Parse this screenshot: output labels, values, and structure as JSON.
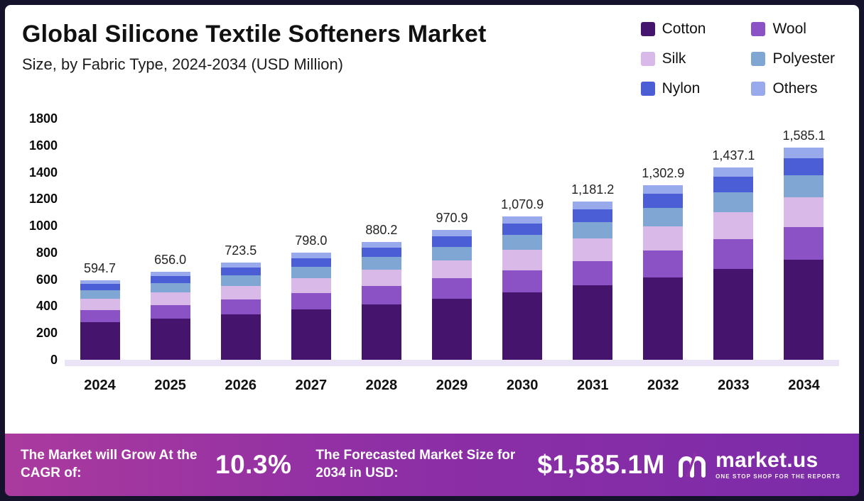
{
  "page": {
    "title": "Global Silicone Textile Softeners Market",
    "subtitle": "Size, by Fabric Type, 2024-2034 (USD Million)"
  },
  "legend": [
    {
      "label": "Cotton",
      "color": "#45156e"
    },
    {
      "label": "Wool",
      "color": "#8a52c4"
    },
    {
      "label": "Silk",
      "color": "#d8b9e8"
    },
    {
      "label": "Polyester",
      "color": "#80a7d3"
    },
    {
      "label": "Nylon",
      "color": "#4c5ed6"
    },
    {
      "label": "Others",
      "color": "#98a9ec"
    }
  ],
  "chart_data": {
    "type": "bar",
    "stacked": true,
    "title": "Global Silicone Textile Softeners Market Size, by Fabric Type, 2024-2034 (USD Million)",
    "unit": "USD Million",
    "grid": false,
    "legend_position": "top-right",
    "categories": [
      "2024",
      "2025",
      "2026",
      "2027",
      "2028",
      "2029",
      "2030",
      "2031",
      "2032",
      "2033",
      "2034"
    ],
    "totals": [
      594.7,
      656.0,
      723.5,
      798.0,
      880.2,
      970.9,
      1070.9,
      1181.2,
      1302.9,
      1437.1,
      1585.1
    ],
    "totals_labels": [
      "594.7",
      "656.0",
      "723.5",
      "798.0",
      "880.2",
      "970.9",
      "1,070.9",
      "1,181.2",
      "1,302.9",
      "1,437.1",
      "1,585.1"
    ],
    "ylim": [
      0,
      1800
    ],
    "y_ticks": [
      0,
      200,
      400,
      600,
      800,
      1000,
      1200,
      1400,
      1600,
      1800
    ],
    "series": [
      {
        "name": "Cotton",
        "color": "#45156e",
        "values": [
          279.5,
          308.3,
          340.0,
          375.1,
          413.7,
          456.3,
          503.3,
          555.2,
          612.4,
          675.4,
          745.0
        ]
      },
      {
        "name": "Wool",
        "color": "#8a52c4",
        "values": [
          92.2,
          101.7,
          112.1,
          123.7,
          136.4,
          150.5,
          166.0,
          183.1,
          201.9,
          222.8,
          245.7
        ]
      },
      {
        "name": "Silk",
        "color": "#d8b9e8",
        "values": [
          83.3,
          91.8,
          101.3,
          111.7,
          123.2,
          135.9,
          149.9,
          165.4,
          182.4,
          201.2,
          221.9
        ]
      },
      {
        "name": "Polyester",
        "color": "#80a7d3",
        "values": [
          62.4,
          68.9,
          76.0,
          83.8,
          92.4,
          101.9,
          112.4,
          124.0,
          136.8,
          150.9,
          166.4
        ]
      },
      {
        "name": "Nylon",
        "color": "#4c5ed6",
        "values": [
          47.6,
          52.5,
          57.9,
          63.8,
          70.4,
          77.7,
          85.7,
          94.5,
          104.2,
          115.0,
          126.8
        ]
      },
      {
        "name": "Others",
        "color": "#98a9ec",
        "values": [
          29.7,
          32.8,
          36.2,
          39.9,
          44.0,
          48.5,
          53.5,
          59.1,
          65.1,
          71.9,
          79.3
        ]
      }
    ]
  },
  "footer": {
    "cagr_label": "The Market will Grow At the CAGR of:",
    "cagr_value": "10.3%",
    "forecast_label": "The Forecasted Market Size for 2034 in USD:",
    "forecast_value": "$1,585.1M",
    "brand": "market.us",
    "tagline": "One Stop Shop for the Reports"
  }
}
